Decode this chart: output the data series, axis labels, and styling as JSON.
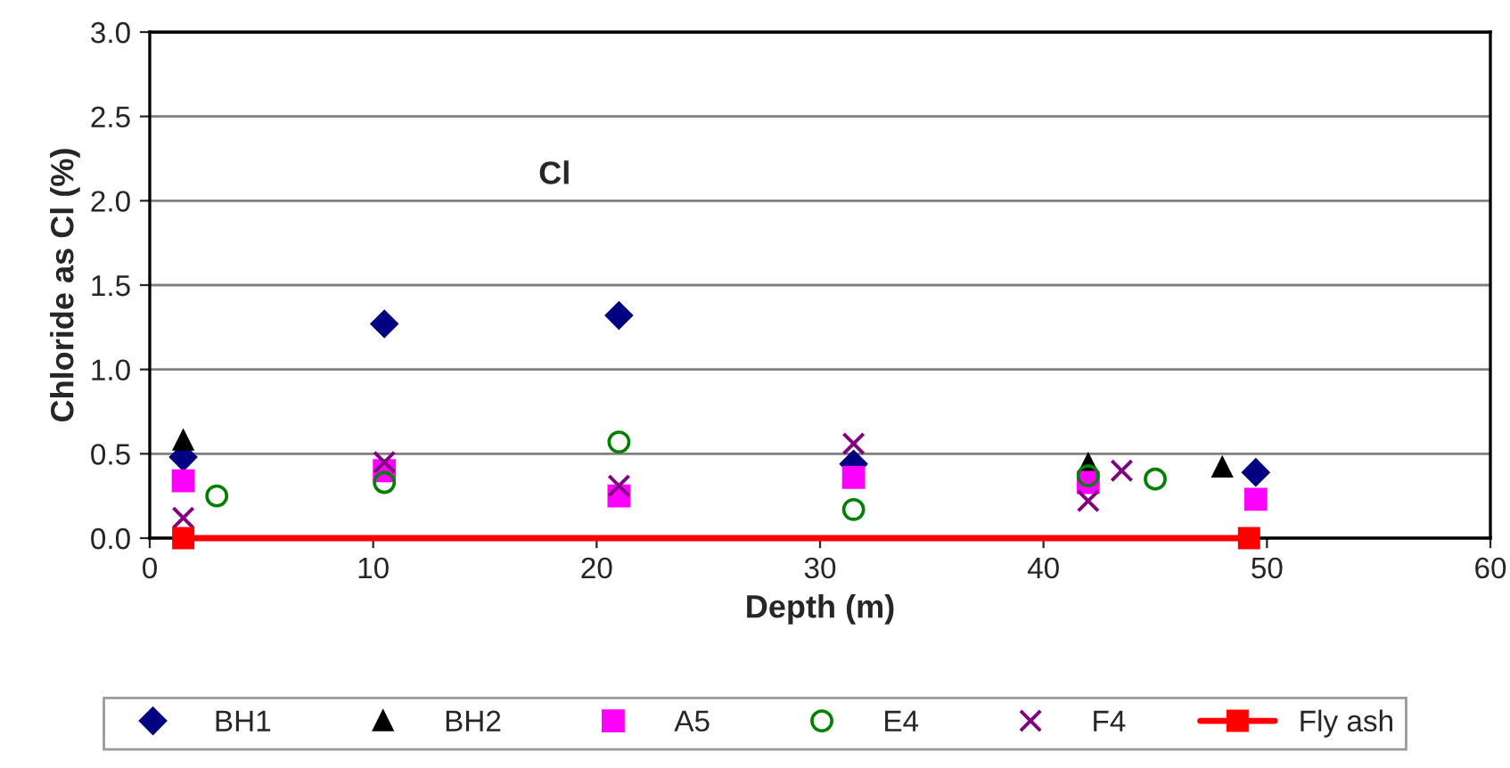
{
  "chart_data": {
    "type": "scatter",
    "xlabel": "Depth (m)",
    "ylabel": "Chloride as Cl (%)",
    "annotations": [
      "Cl"
    ],
    "xlim": [
      0,
      60
    ],
    "xticks": [
      0,
      10,
      20,
      30,
      40,
      50,
      60
    ],
    "ylim": [
      0,
      3.0
    ],
    "yticks": [
      {
        "value": 0,
        "label": "0.0"
      },
      {
        "value": 0.5,
        "label": "0.5"
      },
      {
        "value": 1.0,
        "label": "1.0"
      },
      {
        "value": 1.5,
        "label": "1.5"
      },
      {
        "value": 2.0,
        "label": "2.0"
      },
      {
        "value": 2.5,
        "label": "2.5"
      },
      {
        "value": 3.0,
        "label": "3.0"
      }
    ],
    "grid": "y",
    "legend": "bottom",
    "series": [
      {
        "name": "BH1",
        "color": "#000080",
        "marker": "diamond",
        "x": [
          1.5,
          10.5,
          21,
          31.5,
          49.5
        ],
        "values": [
          0.48,
          1.27,
          1.32,
          0.44,
          0.39
        ]
      },
      {
        "name": "BH2",
        "color": "#000000",
        "marker": "triangle",
        "x": [
          1.5,
          31.5,
          42,
          48
        ],
        "values": [
          0.58,
          null,
          0.44,
          0.42
        ]
      },
      {
        "name": "A5",
        "color": "#ff00ff",
        "marker": "square",
        "x": [
          1.5,
          10.5,
          21,
          31.5,
          42,
          49.5
        ],
        "values": [
          0.34,
          0.4,
          0.25,
          0.36,
          0.33,
          0.23
        ]
      },
      {
        "name": "E4",
        "color": "#008000",
        "marker": "circle",
        "x": [
          3,
          10.5,
          21,
          31.5,
          42,
          45
        ],
        "values": [
          0.25,
          0.33,
          0.57,
          0.17,
          0.37,
          0.35
        ]
      },
      {
        "name": "F4",
        "color": "#800080",
        "marker": "cross",
        "x": [
          1.5,
          10.5,
          21,
          31.5,
          42,
          43.5
        ],
        "values": [
          0.12,
          0.45,
          0.31,
          0.56,
          0.22,
          0.4
        ]
      },
      {
        "name": "Fly ash",
        "color": "#ff0000",
        "type": "line",
        "marker": "square",
        "x": [
          1.5,
          49.2
        ],
        "values": [
          0,
          0
        ]
      }
    ]
  }
}
